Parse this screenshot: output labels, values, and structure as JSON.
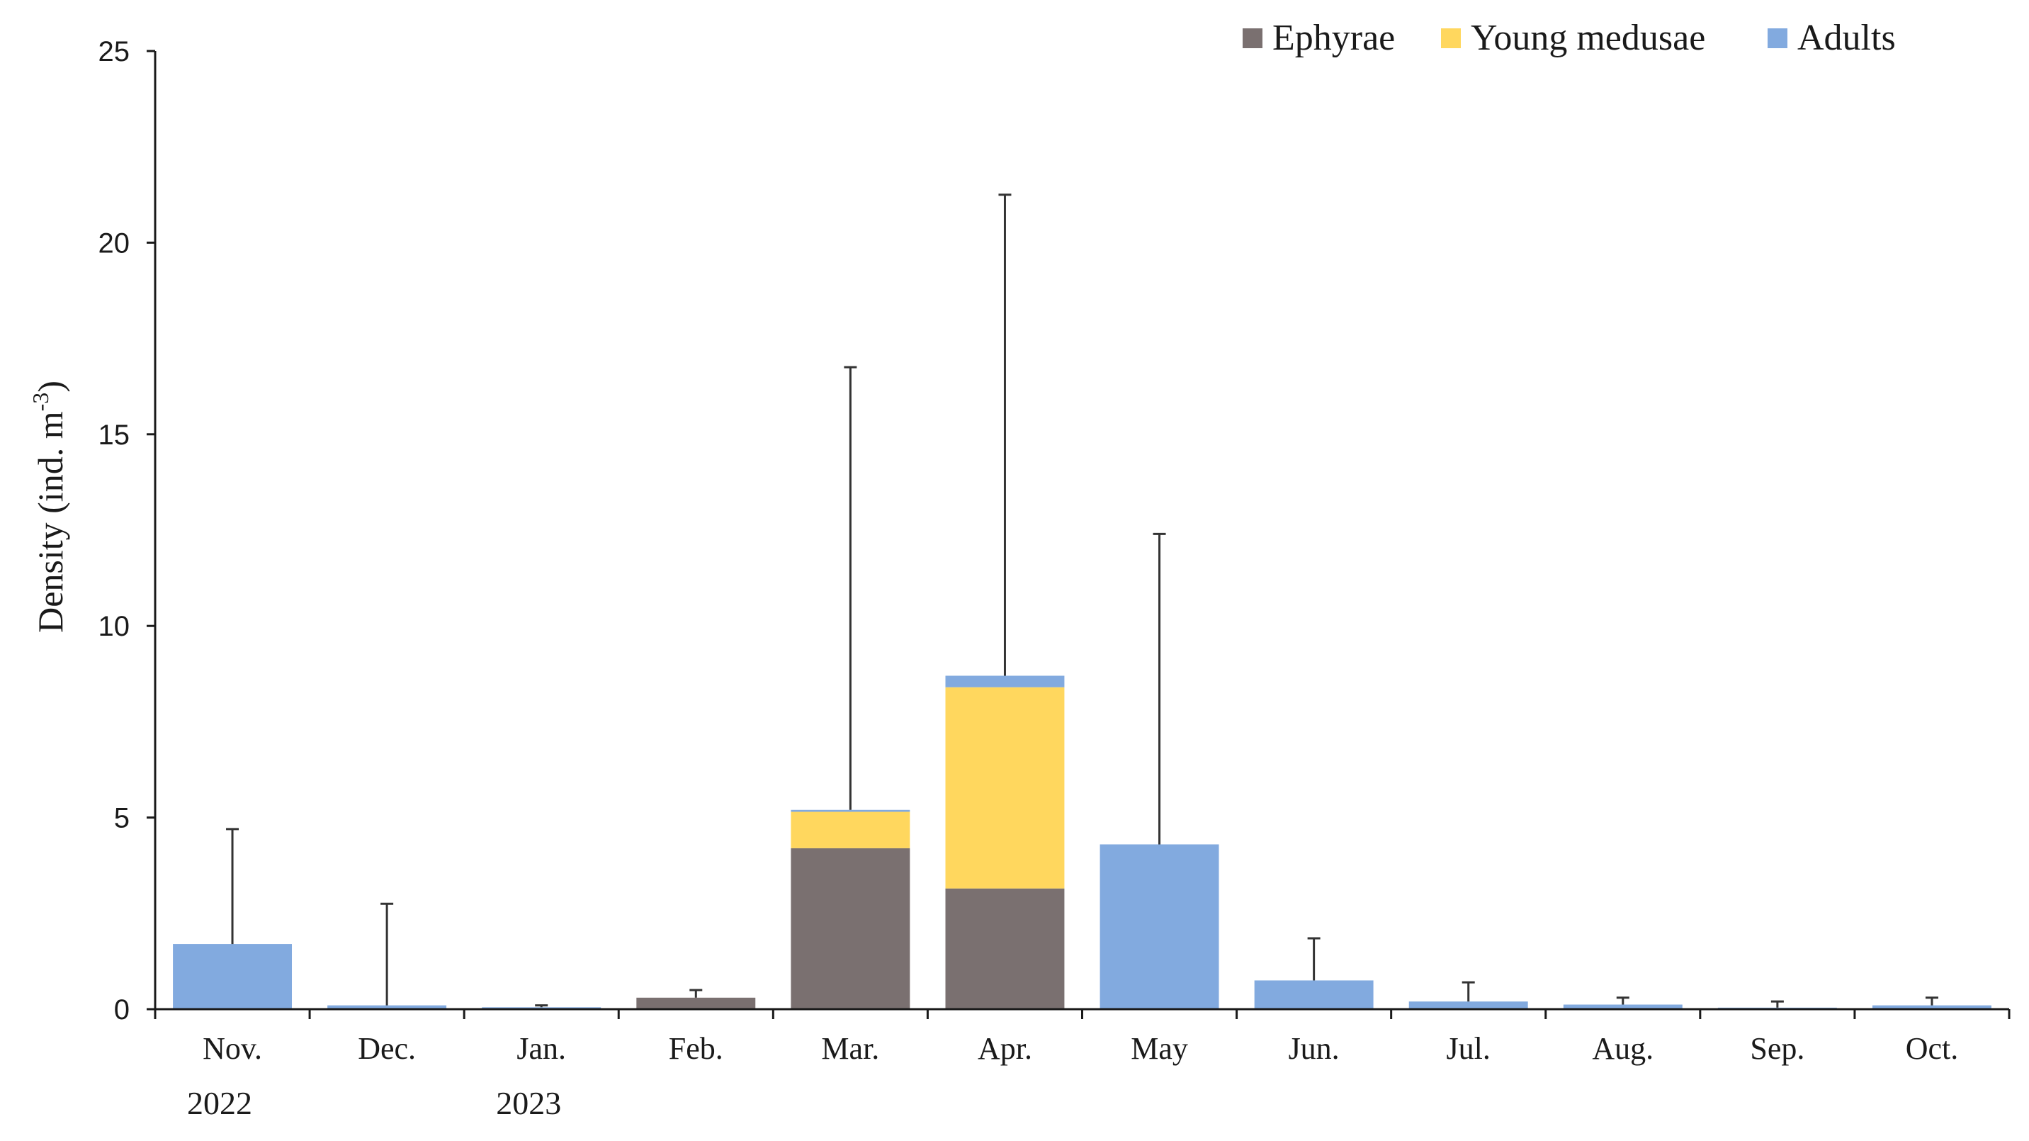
{
  "colors": {
    "Ephyrae": "#7a7070",
    "Young medusae": "#ffd75e",
    "Adults": "#82aadf"
  },
  "chart_data": {
    "type": "bar",
    "stacked": true,
    "title": "",
    "xlabel": "",
    "ylabel": "Density (ind. m",
    "ylabel_sup": "-3",
    "ylabel_end": ")",
    "ylim": [
      0,
      25
    ],
    "yticks": [
      "0",
      "5",
      "10",
      "15",
      "20",
      "25"
    ],
    "legend_position": "top-right",
    "grid": false,
    "categories": [
      "Nov.",
      "Dec.",
      "Jan.",
      "Feb.",
      "Mar.",
      "Apr.",
      "May",
      "Jun.",
      "Jul.",
      "Aug.",
      "Sep.",
      "Oct."
    ],
    "year_labels": [
      {
        "category_index": 0,
        "text": "2022"
      },
      {
        "category_index": 2,
        "text": "2023"
      }
    ],
    "series": [
      {
        "name": "Ephyrae",
        "values": [
          0,
          0,
          0,
          0.3,
          4.2,
          3.15,
          0,
          0,
          0,
          0,
          0,
          0
        ]
      },
      {
        "name": "Young medusae",
        "values": [
          0,
          0,
          0,
          0,
          0.95,
          5.25,
          0,
          0,
          0,
          0,
          0,
          0
        ]
      },
      {
        "name": "Adults",
        "values": [
          1.7,
          0.1,
          0.05,
          0,
          0.05,
          0.3,
          4.3,
          0.75,
          0.2,
          0.12,
          0.04,
          0.1
        ]
      }
    ],
    "error_top": [
      4.7,
      2.75,
      0.1,
      0.5,
      16.75,
      21.25,
      12.4,
      1.85,
      0.7,
      0.3,
      0.2,
      0.3
    ]
  }
}
